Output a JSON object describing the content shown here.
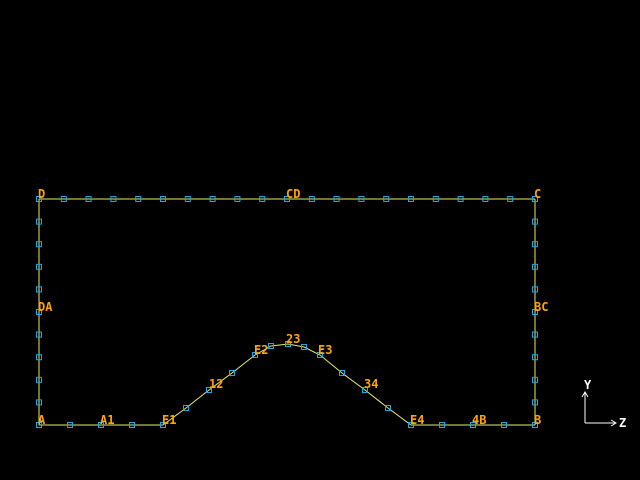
{
  "colors": {
    "background": "#000000",
    "line": "#e4f060",
    "marker": "#20a8e8",
    "label": "#ffa500",
    "axis": "#ffffff"
  },
  "labels": {
    "D": "D",
    "CD": "CD",
    "C": "C",
    "DA": "DA",
    "BC": "BC",
    "A": "A",
    "A1": "A1",
    "E1": "E1",
    "p12": "12",
    "E2": "E2",
    "p23": "23",
    "E3": "E3",
    "p34": "34",
    "E4": "E4",
    "p4B": "4B",
    "B": "B"
  },
  "axes": {
    "vertical": "Y",
    "horizontal": "Z"
  }
}
